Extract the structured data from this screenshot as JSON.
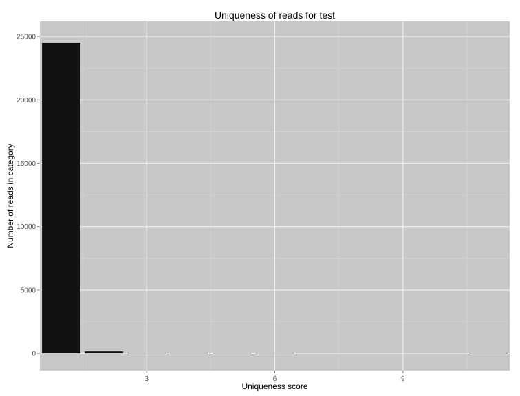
{
  "chart_data": {
    "type": "bar",
    "title": "Uniqueness of reads for test",
    "xlabel": "Uniqueness score",
    "ylabel": "Number of reads in category",
    "x": [
      1,
      2,
      3,
      4,
      5,
      6,
      11
    ],
    "values": [
      24500,
      160,
      40,
      20,
      15,
      12,
      10
    ],
    "xlim": [
      0.5,
      11.5
    ],
    "ylim": [
      -1350,
      26200
    ],
    "x_ticks": [
      3,
      6,
      9
    ],
    "x_tick_labels": [
      "3",
      "6",
      "9"
    ],
    "y_ticks": [
      0,
      5000,
      10000,
      15000,
      20000,
      25000
    ],
    "y_tick_labels": [
      "0",
      "5000",
      "10000",
      "15000",
      "20000",
      "25000"
    ],
    "grid": true,
    "colors": {
      "panel": "#c8c8c8",
      "grid_major": "#f2f2f2",
      "grid_minor": "#d8d8d8",
      "bar": "#111111",
      "tick": "#7f7f7f"
    }
  }
}
